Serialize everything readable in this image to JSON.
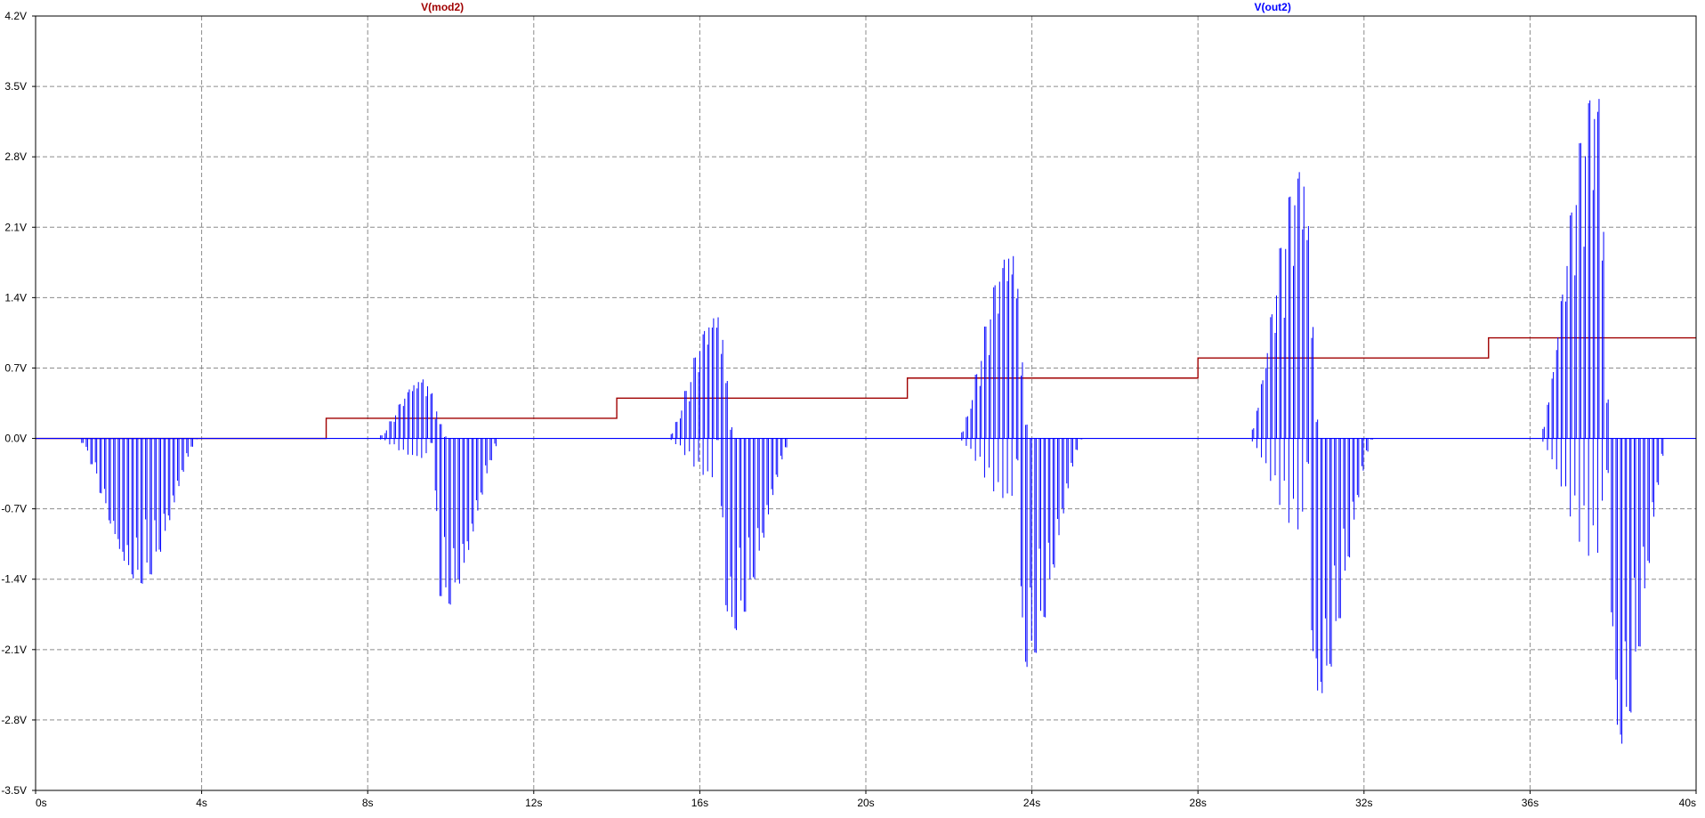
{
  "chart_data": {
    "type": "line",
    "title": "",
    "xlabel": "",
    "ylabel": "",
    "xlim": [
      0,
      40
    ],
    "ylim": [
      -3.5,
      4.2
    ],
    "x_unit": "s",
    "y_unit": "V",
    "grid": true,
    "x_ticks": [
      0,
      4,
      8,
      12,
      16,
      20,
      24,
      28,
      32,
      36,
      40
    ],
    "x_tick_labels": [
      "0s",
      "4s",
      "8s",
      "12s",
      "16s",
      "20s",
      "24s",
      "28s",
      "32s",
      "36s",
      "40s"
    ],
    "y_ticks": [
      4.2,
      3.5,
      2.8,
      2.1,
      1.4,
      0.7,
      0.0,
      -0.7,
      -1.4,
      -2.1,
      -2.8,
      -3.5
    ],
    "y_tick_labels": [
      "4.2V",
      "3.5V",
      "2.8V",
      "2.1V",
      "1.4V",
      "0.7V",
      "0.0V",
      "-0.7V",
      "-1.4V",
      "-2.1V",
      "-2.8V",
      "-3.5V"
    ],
    "series": [
      {
        "name": "V(mod2)",
        "color": "#a00000",
        "style": "step",
        "x": [
          0,
          7,
          7,
          14,
          14,
          21,
          21,
          28,
          28,
          35,
          35,
          40
        ],
        "y": [
          0,
          0,
          0.2,
          0.2,
          0.4,
          0.4,
          0.6,
          0.6,
          0.8,
          0.8,
          1.0,
          1.0
        ]
      },
      {
        "name": "V(out2)",
        "color": "#0000ff",
        "style": "burst-oscillation",
        "baseline": 0,
        "bursts": [
          {
            "pos_start": 0,
            "pos_peak": 0,
            "pos_end": 0,
            "pos_amp": 0.0,
            "neg_start": 1.0,
            "neg_peak": 2.5,
            "neg_end": 3.9,
            "neg_amp": 1.45
          },
          {
            "pos_start": 8.2,
            "pos_peak": 9.3,
            "pos_end": 9.9,
            "pos_amp": 0.6,
            "neg_start": 9.5,
            "neg_peak": 9.8,
            "neg_end": 11.2,
            "neg_amp": 1.7
          },
          {
            "pos_start": 15.2,
            "pos_peak": 16.4,
            "pos_end": 16.8,
            "pos_amp": 1.25,
            "neg_start": 16.4,
            "neg_peak": 16.7,
            "neg_end": 18.2,
            "neg_amp": 1.95
          },
          {
            "pos_start": 22.2,
            "pos_peak": 23.5,
            "pos_end": 23.9,
            "pos_amp": 1.9,
            "neg_start": 23.6,
            "neg_peak": 23.8,
            "neg_end": 25.2,
            "neg_amp": 2.3
          },
          {
            "pos_start": 29.2,
            "pos_peak": 30.5,
            "pos_end": 30.9,
            "pos_amp": 2.7,
            "neg_start": 30.6,
            "neg_peak": 30.8,
            "neg_end": 32.2,
            "neg_amp": 2.65
          },
          {
            "pos_start": 36.2,
            "pos_peak": 37.6,
            "pos_end": 37.9,
            "pos_amp": 3.5,
            "neg_start": 37.8,
            "neg_peak": 38.1,
            "neg_end": 39.3,
            "neg_amp": 3.1
          }
        ]
      }
    ]
  }
}
